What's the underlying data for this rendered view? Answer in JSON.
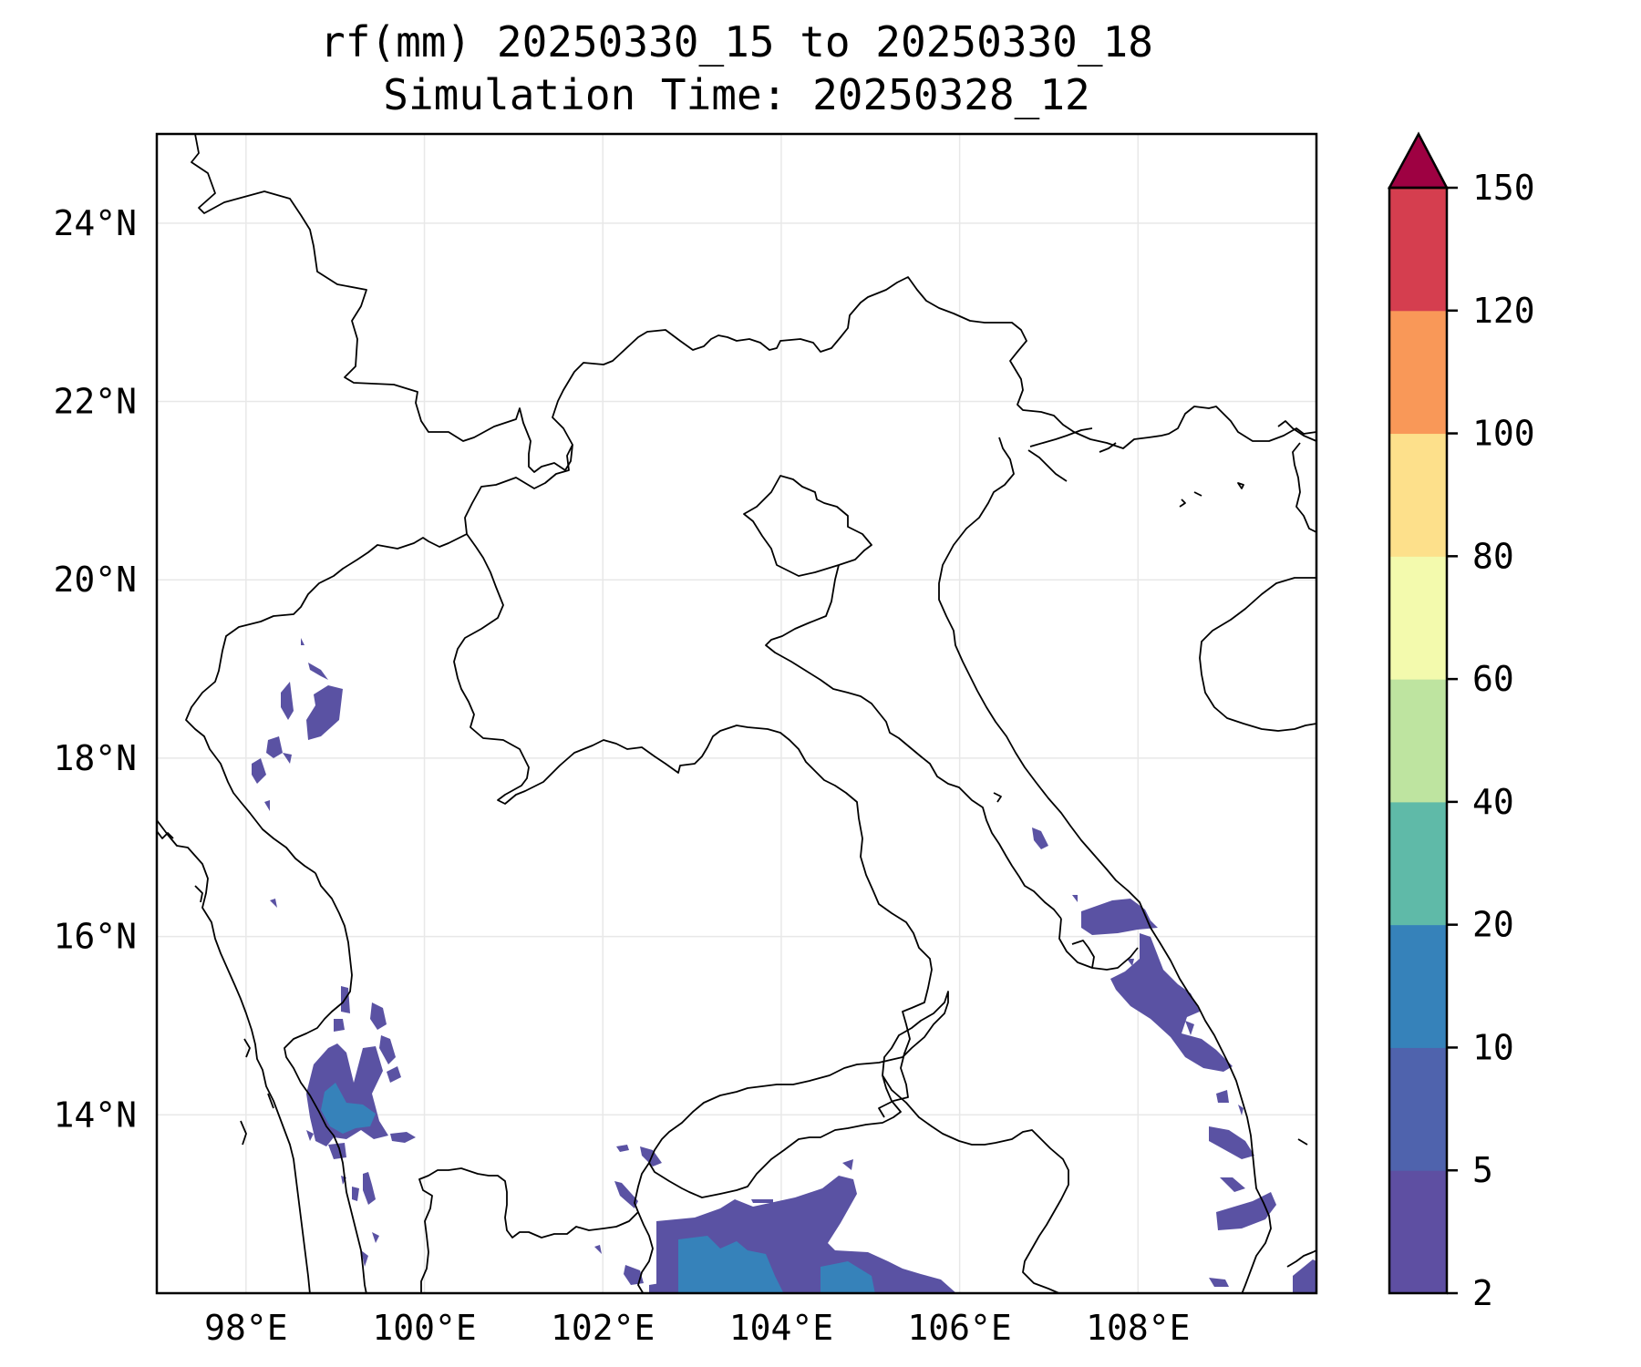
{
  "title": {
    "line1": "rf(mm) 20250330_15 to 20250330_18",
    "line2": "Simulation Time: 20250328_12"
  },
  "map": {
    "lon_range": [
      97.0,
      110.0
    ],
    "lat_range": [
      12.0,
      25.0
    ],
    "gridlines": true,
    "lon_ticks": [
      {
        "value": 98,
        "label": "98°E"
      },
      {
        "value": 100,
        "label": "100°E"
      },
      {
        "value": 102,
        "label": "102°E"
      },
      {
        "value": 104,
        "label": "104°E"
      },
      {
        "value": 106,
        "label": "106°E"
      },
      {
        "value": 108,
        "label": "108°E"
      }
    ],
    "lat_ticks": [
      {
        "value": 14,
        "label": "14°N"
      },
      {
        "value": 16,
        "label": "16°N"
      },
      {
        "value": 18,
        "label": "18°N"
      },
      {
        "value": 20,
        "label": "20°N"
      },
      {
        "value": 22,
        "label": "22°N"
      },
      {
        "value": 24,
        "label": "24°N"
      }
    ]
  },
  "colorbar": {
    "levels": [
      {
        "label": "2",
        "color": "#5e4fa2"
      },
      {
        "label": "5",
        "color": "#4f63ad"
      },
      {
        "label": "10",
        "color": "#3682ba"
      },
      {
        "label": "20",
        "color": "#5fbaa8"
      },
      {
        "label": "40",
        "color": "#bee4a0"
      },
      {
        "label": "60",
        "color": "#f3faad"
      },
      {
        "label": "80",
        "color": "#fde08b"
      },
      {
        "label": "100",
        "color": "#f99858"
      },
      {
        "label": "120",
        "color": "#d53e4f"
      },
      {
        "label": "150",
        "color": ""
      }
    ],
    "extend_color": "#9e0142",
    "extend": "max"
  },
  "colors": {
    "rain_light": "#5a52a3",
    "rain_mid": "#3682ba",
    "border": "#000000",
    "grid": "#e8e8e8"
  }
}
